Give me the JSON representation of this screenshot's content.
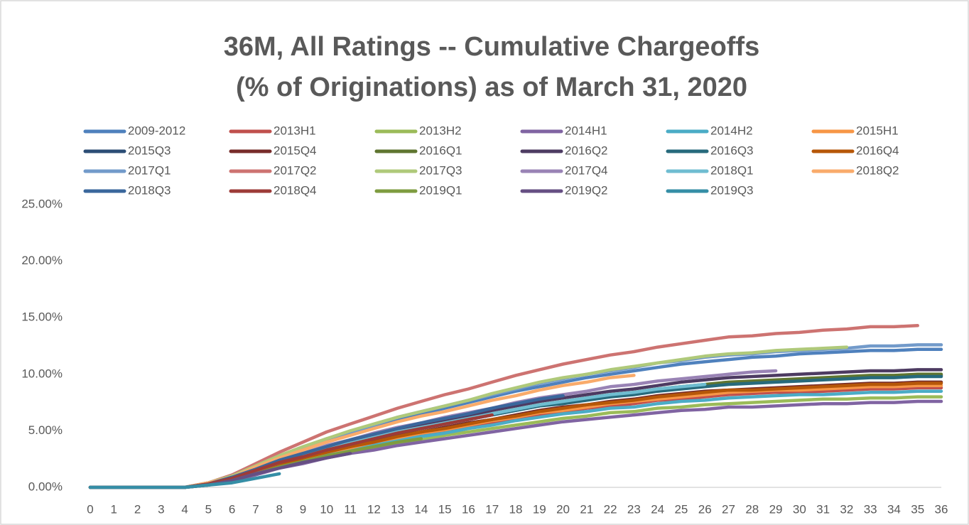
{
  "chart_data": {
    "type": "line",
    "title": [
      "36M, All Ratings -- Cumulative Chargeoffs",
      "(% of Originations) as of March 31, 2020"
    ],
    "x": [
      0,
      1,
      2,
      3,
      4,
      5,
      6,
      7,
      8,
      9,
      10,
      11,
      12,
      13,
      14,
      15,
      16,
      17,
      18,
      19,
      20,
      21,
      22,
      23,
      24,
      25,
      26,
      27,
      28,
      29,
      30,
      31,
      32,
      33,
      34,
      35,
      36
    ],
    "xlim": [
      0,
      36
    ],
    "xticks": [
      0,
      1,
      2,
      3,
      4,
      5,
      6,
      7,
      8,
      9,
      10,
      11,
      12,
      13,
      14,
      15,
      16,
      17,
      18,
      19,
      20,
      21,
      22,
      23,
      24,
      25,
      26,
      27,
      28,
      29,
      30,
      31,
      32,
      33,
      34,
      35,
      36
    ],
    "ylim": [
      0,
      25
    ],
    "yticks": [
      {
        "value": 0,
        "label": "0.00%"
      },
      {
        "value": 5,
        "label": "5.00%"
      },
      {
        "value": 10,
        "label": "10.00%"
      },
      {
        "value": 15,
        "label": "15.00%"
      },
      {
        "value": 20,
        "label": "20.00%"
      },
      {
        "value": 25,
        "label": "25.00%"
      }
    ],
    "grid": false,
    "legend": "top",
    "series": [
      {
        "name": "2009-2012",
        "color": "#4f81bd",
        "values": [
          0,
          0,
          0,
          0,
          0,
          0.4,
          1.0,
          1.9,
          2.7,
          3.4,
          4.1,
          4.7,
          5.3,
          5.9,
          6.5,
          7.0,
          7.5,
          8.0,
          8.5,
          8.9,
          9.3,
          9.7,
          10.0,
          10.3,
          10.6,
          10.9,
          11.1,
          11.3,
          11.5,
          11.6,
          11.8,
          11.9,
          12.0,
          12.1,
          12.1,
          12.2,
          12.2
        ]
      },
      {
        "name": "2013H1",
        "color": "#c0504d",
        "values": [
          0,
          0,
          0,
          0,
          0,
          0.3,
          0.7,
          1.3,
          1.9,
          2.5,
          3.0,
          3.4,
          3.9,
          4.3,
          4.7,
          5.0,
          5.4,
          5.7,
          6.1,
          6.4,
          6.7,
          7.0,
          7.2,
          7.4,
          7.7,
          7.8,
          8.0,
          8.2,
          8.3,
          8.4,
          8.4,
          8.5,
          8.6,
          8.7,
          8.7,
          8.8,
          8.8
        ]
      },
      {
        "name": "2013H2",
        "color": "#9bbb59",
        "values": [
          0,
          0,
          0,
          0,
          0,
          0.2,
          0.6,
          1.2,
          1.8,
          2.2,
          2.7,
          3.1,
          3.5,
          3.9,
          4.2,
          4.6,
          4.9,
          5.2,
          5.5,
          5.8,
          6.1,
          6.3,
          6.6,
          6.7,
          7.0,
          7.1,
          7.3,
          7.4,
          7.5,
          7.6,
          7.7,
          7.8,
          7.8,
          7.9,
          7.9,
          8.0,
          8.0
        ]
      },
      {
        "name": "2014H1",
        "color": "#8064a2",
        "values": [
          0,
          0,
          0,
          0,
          0,
          0.2,
          0.6,
          1.1,
          1.7,
          2.1,
          2.6,
          3.0,
          3.3,
          3.7,
          4.0,
          4.3,
          4.6,
          4.9,
          5.2,
          5.5,
          5.8,
          6.0,
          6.2,
          6.4,
          6.6,
          6.8,
          6.9,
          7.1,
          7.1,
          7.2,
          7.3,
          7.4,
          7.4,
          7.5,
          7.5,
          7.6,
          7.6
        ]
      },
      {
        "name": "2014H2",
        "color": "#4bacc6",
        "values": [
          0,
          0,
          0,
          0,
          0,
          0.3,
          0.7,
          1.3,
          1.9,
          2.4,
          2.9,
          3.3,
          3.7,
          4.2,
          4.5,
          4.8,
          5.2,
          5.5,
          5.9,
          6.2,
          6.5,
          6.7,
          7.0,
          7.1,
          7.4,
          7.6,
          7.7,
          7.9,
          8.0,
          8.1,
          8.2,
          8.2,
          8.3,
          8.4,
          8.4,
          8.5,
          8.5
        ]
      },
      {
        "name": "2015H1",
        "color": "#f79646",
        "values": [
          0,
          0,
          0,
          0,
          0,
          0.3,
          0.7,
          1.4,
          2.0,
          2.5,
          3.1,
          3.5,
          4.0,
          4.4,
          4.8,
          5.1,
          5.5,
          5.9,
          6.2,
          6.6,
          6.8,
          7.1,
          7.4,
          7.6,
          7.8,
          8.0,
          8.2,
          8.4,
          8.5,
          8.6,
          8.6,
          8.7,
          8.8,
          8.9,
          8.9,
          9.0,
          9.0
        ]
      },
      {
        "name": "2015Q3",
        "color": "#2c4d75",
        "values": [
          0,
          0,
          0,
          0,
          0,
          0.3,
          0.8,
          1.5,
          2.2,
          2.8,
          3.4,
          3.9,
          4.4,
          4.9,
          5.2,
          5.6,
          6.0,
          6.4,
          6.8,
          7.2,
          7.5,
          7.8,
          8.1,
          8.3,
          8.6,
          8.8,
          9.0,
          9.2,
          9.3,
          9.4,
          9.5,
          9.6,
          9.7,
          9.8,
          9.8,
          9.9,
          9.9
        ]
      },
      {
        "name": "2015Q4",
        "color": "#772c2a",
        "values": [
          0,
          0,
          0,
          0,
          0,
          0.3,
          0.7,
          1.4,
          2.0,
          2.6,
          3.2,
          3.6,
          4.1,
          4.6,
          4.9,
          5.3,
          5.7,
          6.0,
          6.4,
          6.8,
          7.1,
          7.3,
          7.6,
          7.8,
          8.1,
          8.3,
          8.5,
          8.6,
          8.7,
          8.8,
          8.9,
          9.0,
          9.1,
          9.2,
          9.2,
          9.3,
          9.3
        ]
      },
      {
        "name": "2016Q1",
        "color": "#5f7530",
        "values": [
          0,
          0,
          0,
          0,
          0,
          0.3,
          0.8,
          1.5,
          2.2,
          2.8,
          3.4,
          3.9,
          4.4,
          4.9,
          5.3,
          5.7,
          6.1,
          6.5,
          6.9,
          7.3,
          7.6,
          7.9,
          8.2,
          8.4,
          8.7,
          8.9,
          9.1,
          9.3,
          9.4,
          9.5,
          9.6,
          9.7,
          9.8,
          9.9,
          9.9,
          10.0,
          10.0
        ]
      },
      {
        "name": "2016Q2",
        "color": "#4d3b62",
        "values": [
          0,
          0,
          0,
          0,
          0,
          0.3,
          0.8,
          1.6,
          2.3,
          2.9,
          3.5,
          4.1,
          4.6,
          5.1,
          5.5,
          5.9,
          6.3,
          6.8,
          7.2,
          7.6,
          7.9,
          8.2,
          8.5,
          8.7,
          9.0,
          9.3,
          9.5,
          9.7,
          9.8,
          9.9,
          10.0,
          10.1,
          10.2,
          10.3,
          10.3,
          10.4,
          10.4
        ]
      },
      {
        "name": "2016Q3",
        "color": "#276a7c",
        "values": [
          0,
          0,
          0,
          0,
          0,
          0.3,
          0.8,
          1.5,
          2.2,
          2.7,
          3.3,
          3.8,
          4.3,
          4.8,
          5.2,
          5.6,
          6.0,
          6.4,
          6.8,
          7.2,
          7.4,
          7.7,
          8.0,
          8.2,
          8.5,
          8.7,
          8.9,
          9.1,
          9.2,
          9.3,
          9.4,
          9.5,
          9.6,
          9.7,
          9.7,
          9.8,
          9.8
        ]
      },
      {
        "name": "2016Q4",
        "color": "#b65708",
        "values": [
          0,
          0,
          0,
          0,
          0,
          0.3,
          0.7,
          1.4,
          2.0,
          2.6,
          3.1,
          3.6,
          4.0,
          4.5,
          4.9,
          5.2,
          5.6,
          6.0,
          6.3,
          6.7,
          7.0,
          7.3,
          7.5,
          7.7,
          8.0,
          8.2,
          8.4,
          8.6,
          8.6,
          8.7,
          8.8,
          8.9,
          9.0,
          9.1,
          9.1,
          9.2,
          9.2
        ]
      },
      {
        "name": "2017Q1",
        "color": "#729aca",
        "values": [
          0,
          0,
          0,
          0,
          0,
          0.4,
          1.0,
          1.9,
          2.8,
          3.5,
          4.3,
          4.9,
          5.5,
          6.2,
          6.7,
          7.2,
          7.7,
          8.2,
          8.7,
          9.2,
          9.6,
          10.0,
          10.3,
          10.6,
          11.0,
          11.2,
          11.5,
          11.7,
          11.8,
          12.0,
          12.1,
          12.2,
          12.3,
          12.5,
          12.5,
          12.6,
          12.6
        ]
      },
      {
        "name": "2017Q2",
        "color": "#cd7371",
        "values": [
          0,
          0,
          0,
          0,
          0,
          0.4,
          1.1,
          2.1,
          3.1,
          4.0,
          4.9,
          5.6,
          6.3,
          7.0,
          7.6,
          8.2,
          8.7,
          9.3,
          9.9,
          10.4,
          10.9,
          11.3,
          11.7,
          12.0,
          12.4,
          12.7,
          13.0,
          13.3,
          13.4,
          13.6,
          13.7,
          13.9,
          14.0,
          14.2,
          14.2,
          14.3,
          null
        ]
      },
      {
        "name": "2017Q3",
        "color": "#afc97a",
        "values": [
          0,
          0,
          0,
          0,
          0,
          0.4,
          1.0,
          1.9,
          2.8,
          3.6,
          4.3,
          5.0,
          5.6,
          6.2,
          6.7,
          7.2,
          7.7,
          8.3,
          8.8,
          9.3,
          9.7,
          10.0,
          10.4,
          10.7,
          11.0,
          11.3,
          11.6,
          11.8,
          11.9,
          12.1,
          12.2,
          12.3,
          12.4,
          null,
          null,
          null,
          null
        ]
      },
      {
        "name": "2017Q4",
        "color": "#9983b5",
        "values": [
          0,
          0,
          0,
          0,
          0,
          0.3,
          0.9,
          1.6,
          2.4,
          3.0,
          3.7,
          4.2,
          4.8,
          5.3,
          5.7,
          6.2,
          6.6,
          7.0,
          7.5,
          7.9,
          8.2,
          8.5,
          8.9,
          9.1,
          9.4,
          9.6,
          9.8,
          10.0,
          10.2,
          10.3,
          null,
          null,
          null,
          null,
          null,
          null,
          null
        ]
      },
      {
        "name": "2018Q1",
        "color": "#6fbdd1",
        "values": [
          0,
          0,
          0,
          0,
          0,
          0.3,
          0.8,
          1.5,
          2.2,
          2.8,
          3.4,
          3.9,
          4.4,
          4.9,
          5.3,
          5.7,
          6.1,
          6.5,
          6.9,
          7.3,
          7.6,
          7.9,
          8.2,
          8.4,
          8.7,
          8.9,
          9.1,
          null,
          null,
          null,
          null,
          null,
          null,
          null,
          null,
          null,
          null
        ]
      },
      {
        "name": "2018Q2",
        "color": "#f9ab6b",
        "values": [
          0,
          0,
          0,
          0,
          0,
          0.4,
          0.9,
          1.8,
          2.6,
          3.3,
          4.0,
          4.6,
          5.2,
          5.8,
          6.3,
          6.7,
          7.2,
          7.7,
          8.1,
          8.6,
          9.0,
          9.3,
          9.7,
          9.9,
          null,
          null,
          null,
          null,
          null,
          null,
          null,
          null,
          null,
          null,
          null,
          null,
          null
        ]
      },
      {
        "name": "2018Q3",
        "color": "#3a679c",
        "values": [
          0,
          0,
          0,
          0,
          0,
          0.3,
          0.9,
          1.6,
          2.4,
          3.0,
          3.6,
          4.2,
          4.7,
          5.2,
          5.7,
          6.1,
          6.5,
          7.0,
          7.4,
          7.8,
          8.1,
          null,
          null,
          null,
          null,
          null,
          null,
          null,
          null,
          null,
          null,
          null,
          null,
          null,
          null,
          null,
          null
        ]
      },
      {
        "name": "2018Q4",
        "color": "#9d3b38",
        "values": [
          0,
          0,
          0,
          0,
          0,
          0.3,
          0.8,
          1.5,
          2.2,
          2.7,
          3.3,
          3.8,
          4.3,
          4.8,
          5.2,
          5.6,
          6.0,
          6.4,
          null,
          null,
          null,
          null,
          null,
          null,
          null,
          null,
          null,
          null,
          null,
          null,
          null,
          null,
          null,
          null,
          null,
          null,
          null
        ]
      },
      {
        "name": "2019Q1",
        "color": "#7e9c40",
        "values": [
          0,
          0,
          0,
          0,
          0,
          0.2,
          0.6,
          1.2,
          1.8,
          2.3,
          2.8,
          3.2,
          3.6,
          4.0,
          4.3,
          null,
          null,
          null,
          null,
          null,
          null,
          null,
          null,
          null,
          null,
          null,
          null,
          null,
          null,
          null,
          null,
          null,
          null,
          null,
          null,
          null,
          null
        ]
      },
      {
        "name": "2019Q2",
        "color": "#664f83",
        "values": [
          0,
          0,
          0,
          0,
          0,
          0.2,
          0.6,
          1.2,
          1.7,
          2.2,
          2.6,
          3.0,
          null,
          null,
          null,
          null,
          null,
          null,
          null,
          null,
          null,
          null,
          null,
          null,
          null,
          null,
          null,
          null,
          null,
          null,
          null,
          null,
          null,
          null,
          null,
          null,
          null
        ]
      },
      {
        "name": "2019Q3",
        "color": "#358ea6",
        "values": [
          0,
          0,
          0,
          0,
          0,
          0.2,
          0.4,
          0.8,
          1.2,
          null,
          null,
          null,
          null,
          null,
          null,
          null,
          null,
          null,
          null,
          null,
          null,
          null,
          null,
          null,
          null,
          null,
          null,
          null,
          null,
          null,
          null,
          null,
          null,
          null,
          null,
          null,
          null
        ]
      }
    ]
  }
}
